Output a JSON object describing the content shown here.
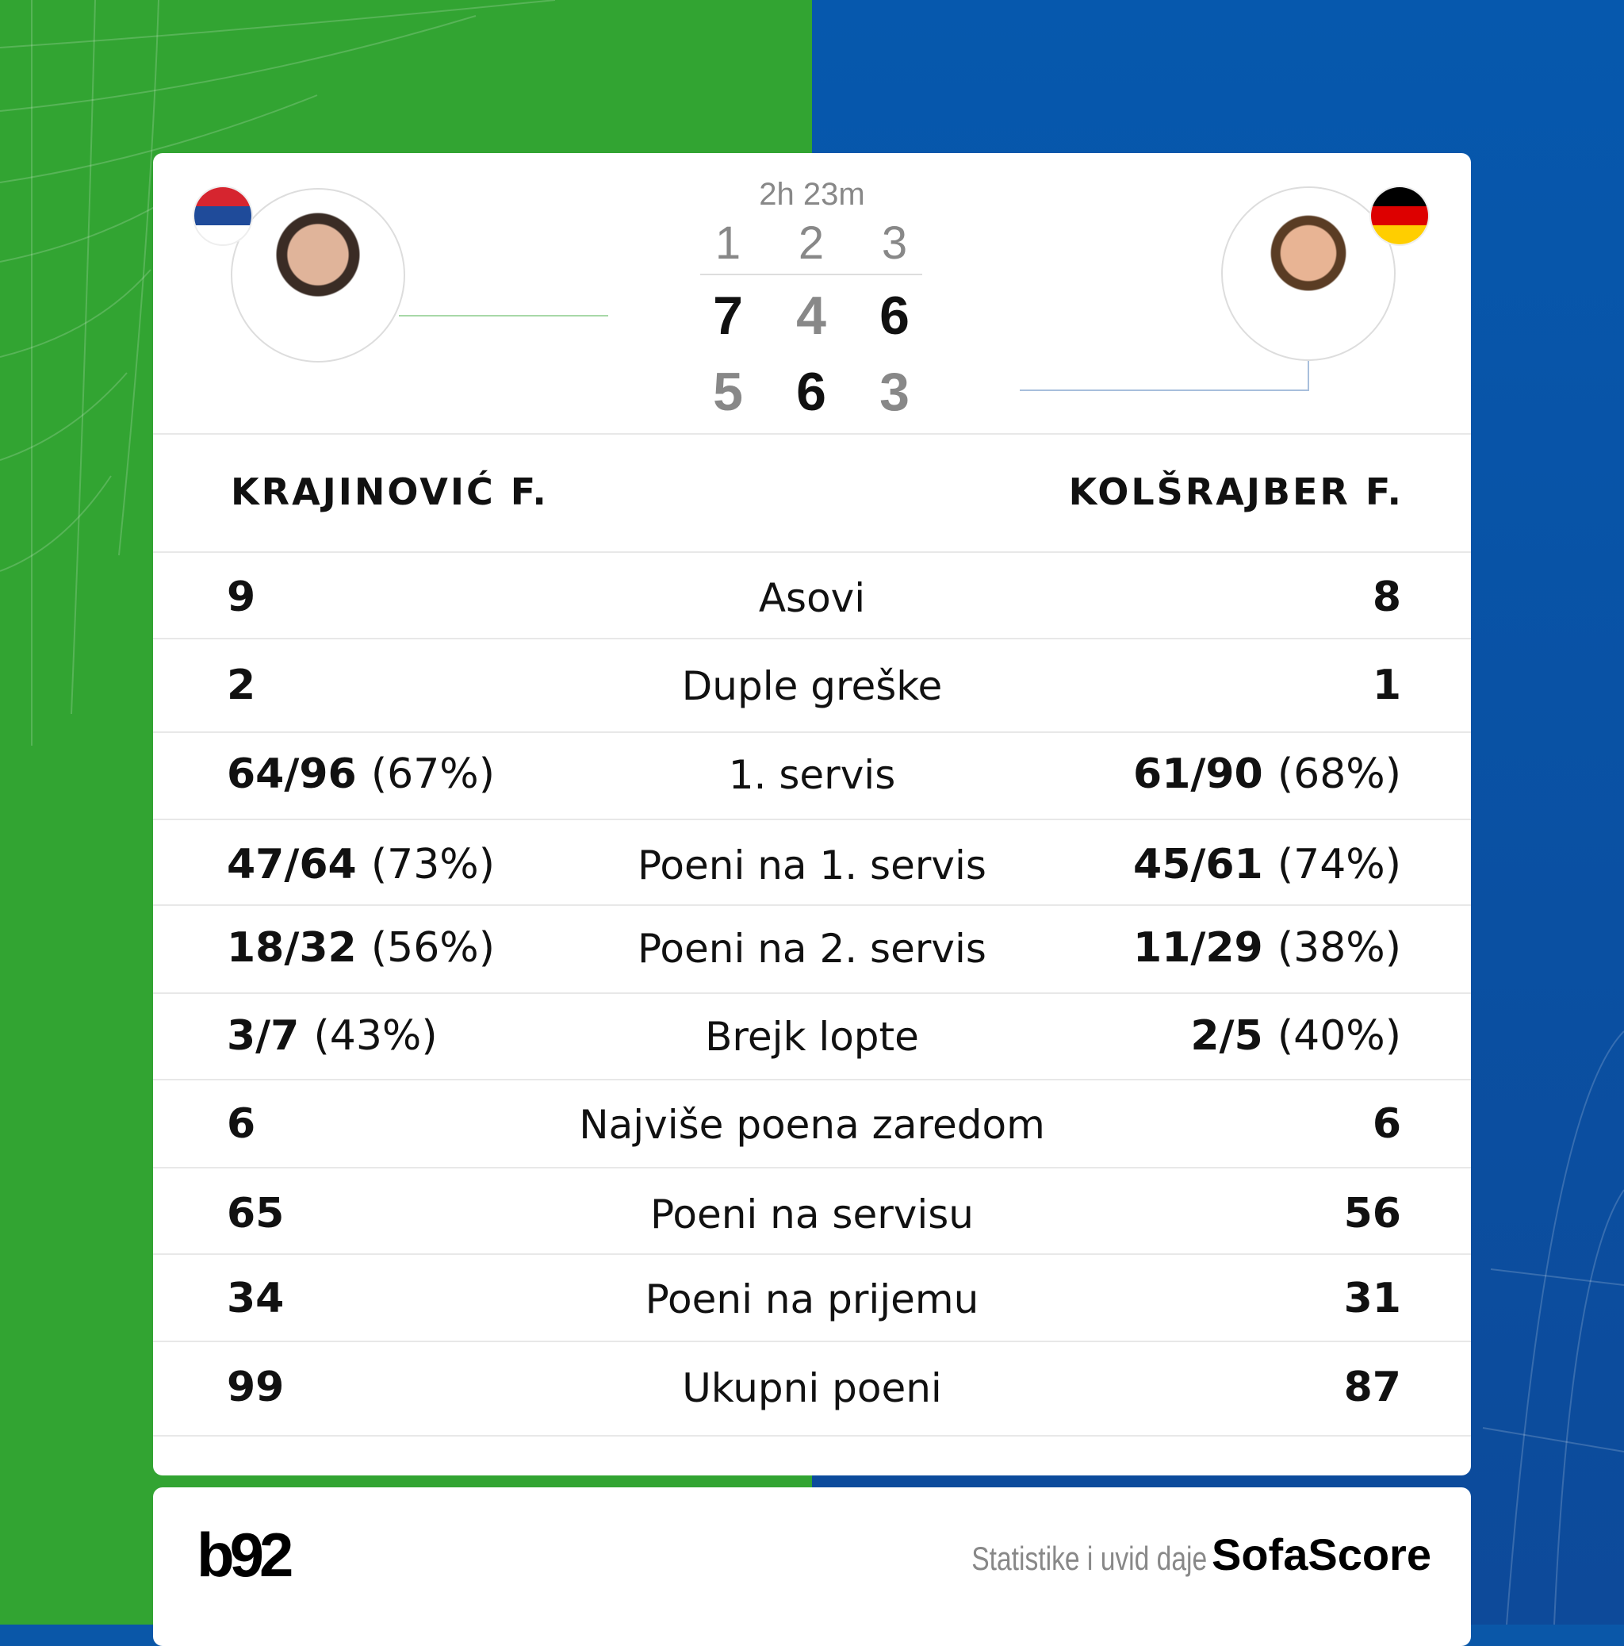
{
  "colors": {
    "left_bg": "#32a432",
    "right_bg": "#0a57a8",
    "win": "#111111",
    "lose": "#888888"
  },
  "match": {
    "duration": "2h 23m",
    "sets": [
      "1",
      "2",
      "3"
    ],
    "player1": {
      "name": "KRAJINOVIĆ F.",
      "flag": "serbia-flag",
      "scores": [
        "7",
        "4",
        "6"
      ],
      "won": [
        true,
        false,
        true
      ]
    },
    "player2": {
      "name": "KOLŠRAJBER F.",
      "flag": "germany-flag",
      "scores": [
        "5",
        "6",
        "3"
      ],
      "won": [
        false,
        true,
        false
      ]
    }
  },
  "stats": [
    {
      "label": "Asovi",
      "p1": "9",
      "p1_pct": "",
      "p2": "8",
      "p2_pct": ""
    },
    {
      "label": "Duple greške",
      "p1": "2",
      "p1_pct": "",
      "p2": "1",
      "p2_pct": ""
    },
    {
      "label": "1. servis",
      "p1": "64/96",
      "p1_pct": "(67%)",
      "p2": "61/90",
      "p2_pct": "(68%)"
    },
    {
      "label": "Poeni na 1. servis",
      "p1": "47/64",
      "p1_pct": "(73%)",
      "p2": "45/61",
      "p2_pct": "(74%)"
    },
    {
      "label": "Poeni na 2. servis",
      "p1": "18/32",
      "p1_pct": "(56%)",
      "p2": "11/29",
      "p2_pct": "(38%)"
    },
    {
      "label": "Brejk lopte",
      "p1": "3/7",
      "p1_pct": "(43%)",
      "p2": "2/5",
      "p2_pct": "(40%)"
    },
    {
      "label": "Najviše poena zaredom",
      "p1": "6",
      "p1_pct": "",
      "p2": "6",
      "p2_pct": ""
    },
    {
      "label": "Poeni na servisu",
      "p1": "65",
      "p1_pct": "",
      "p2": "56",
      "p2_pct": ""
    },
    {
      "label": "Poeni na prijemu",
      "p1": "34",
      "p1_pct": "",
      "p2": "31",
      "p2_pct": ""
    },
    {
      "label": "Ukupni poeni",
      "p1": "99",
      "p1_pct": "",
      "p2": "87",
      "p2_pct": ""
    }
  ],
  "footer": {
    "logo": "b92",
    "credit": "Statistike i uvid daje",
    "brand": "SofaScore"
  }
}
